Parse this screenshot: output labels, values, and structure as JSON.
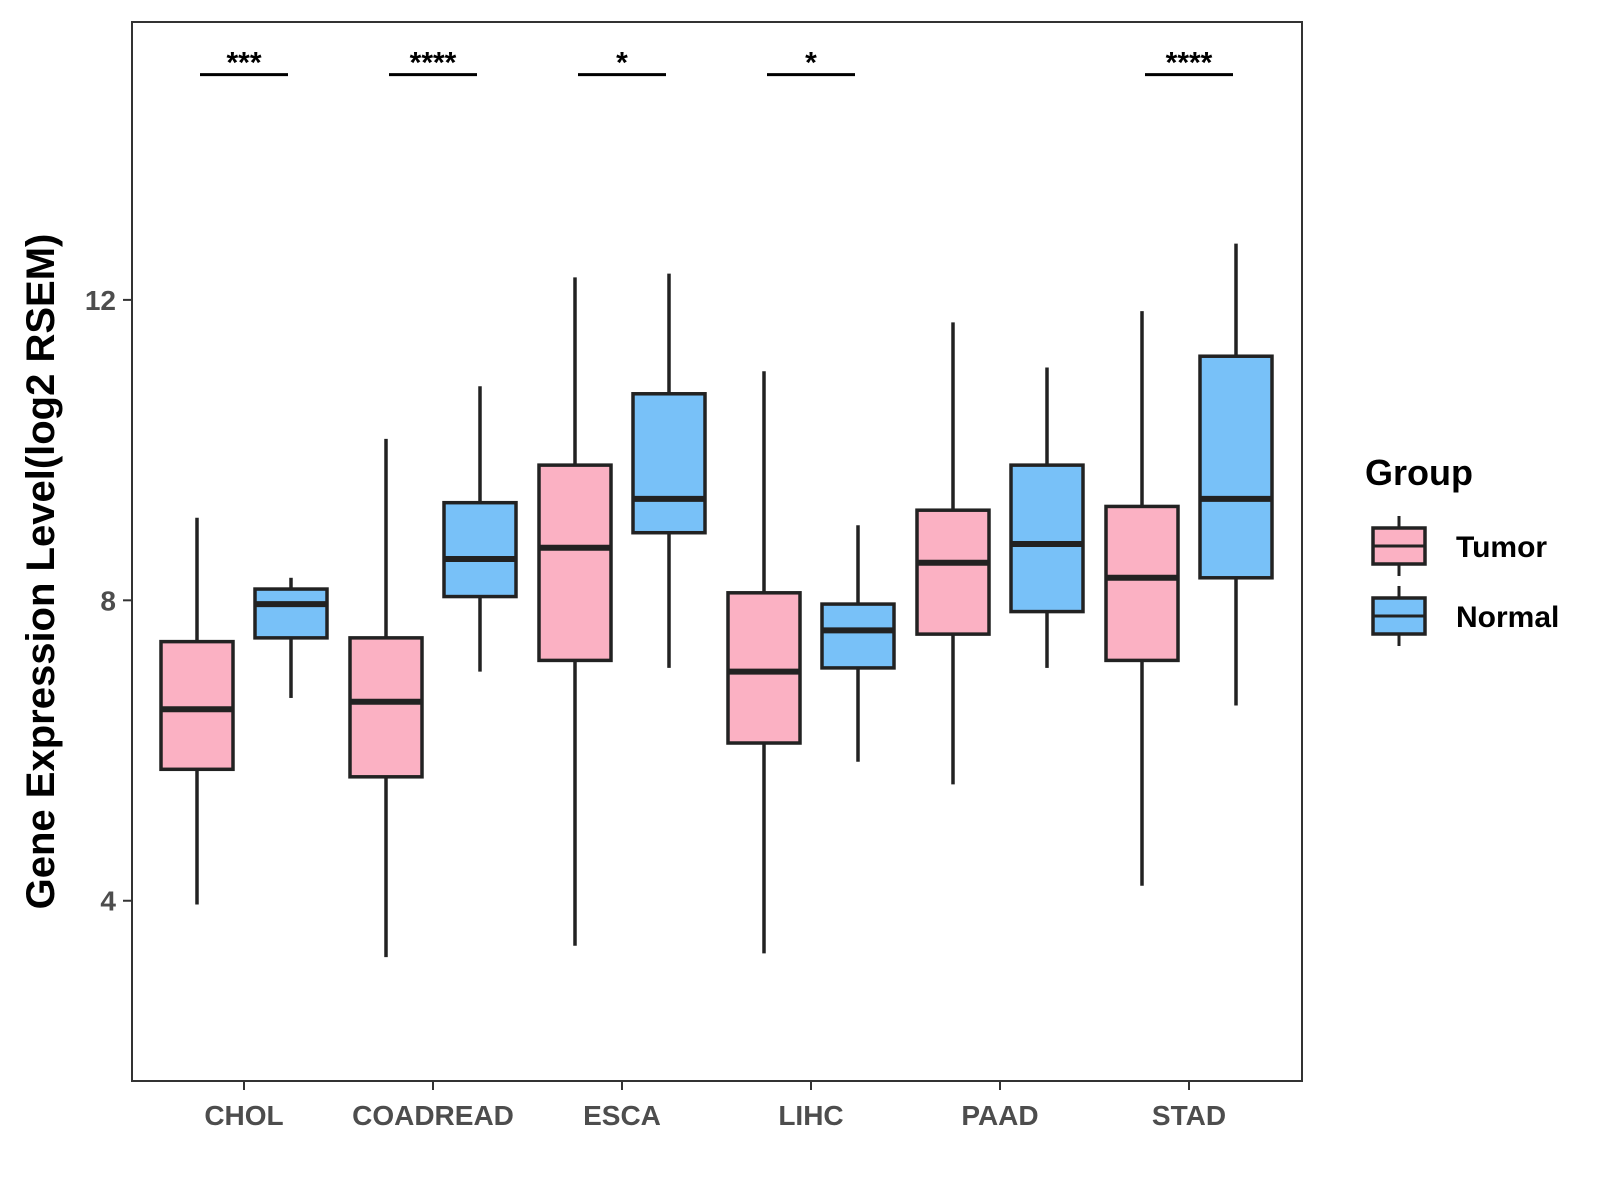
{
  "chart_data": {
    "type": "boxplot",
    "title": "",
    "xlabel": "",
    "ylabel": "Gene Expression Level(log2 RSEM)",
    "ylim": [
      1.6,
      15.7
    ],
    "yticks": [
      4,
      8,
      12
    ],
    "categories": [
      "CHOL",
      "COADREAD",
      "ESCA",
      "LIHC",
      "PAAD",
      "STAD"
    ],
    "legend": {
      "title": "Group",
      "position": "right",
      "entries": [
        {
          "name": "Tumor",
          "color": "#FBB1C3"
        },
        {
          "name": "Normal",
          "color": "#78C1F8"
        }
      ]
    },
    "series": [
      {
        "name": "Tumor",
        "color": "#FBB1C3",
        "boxes": [
          {
            "min": 3.95,
            "q1": 5.75,
            "median": 6.55,
            "q3": 7.45,
            "max": 9.1
          },
          {
            "min": 3.25,
            "q1": 5.65,
            "median": 6.65,
            "q3": 7.5,
            "max": 10.15
          },
          {
            "min": 3.4,
            "q1": 7.2,
            "median": 8.7,
            "q3": 9.8,
            "max": 12.3
          },
          {
            "min": 3.3,
            "q1": 6.1,
            "median": 7.05,
            "q3": 8.1,
            "max": 11.05
          },
          {
            "min": 5.55,
            "q1": 7.55,
            "median": 8.5,
            "q3": 9.2,
            "max": 11.7
          },
          {
            "min": 4.2,
            "q1": 7.2,
            "median": 8.3,
            "q3": 9.25,
            "max": 11.85
          }
        ]
      },
      {
        "name": "Normal",
        "color": "#78C1F8",
        "boxes": [
          {
            "min": 6.7,
            "q1": 7.5,
            "median": 7.95,
            "q3": 8.15,
            "max": 8.3
          },
          {
            "min": 7.05,
            "q1": 8.05,
            "median": 8.55,
            "q3": 9.3,
            "max": 10.85
          },
          {
            "min": 7.1,
            "q1": 8.9,
            "median": 9.35,
            "q3": 10.75,
            "max": 12.35
          },
          {
            "min": 5.85,
            "q1": 7.1,
            "median": 7.6,
            "q3": 7.95,
            "max": 9.0
          },
          {
            "min": 7.1,
            "q1": 7.85,
            "median": 8.75,
            "q3": 9.8,
            "max": 11.1
          },
          {
            "min": 6.6,
            "q1": 8.3,
            "median": 9.35,
            "q3": 11.25,
            "max": 12.75
          }
        ]
      }
    ],
    "significance": [
      {
        "category": "CHOL",
        "label": "***"
      },
      {
        "category": "COADREAD",
        "label": "****"
      },
      {
        "category": "ESCA",
        "label": "*"
      },
      {
        "category": "LIHC",
        "label": "*"
      },
      {
        "category": "PAAD",
        "label": ""
      },
      {
        "category": "STAD",
        "label": "****"
      }
    ],
    "significance_y": 15.0
  }
}
